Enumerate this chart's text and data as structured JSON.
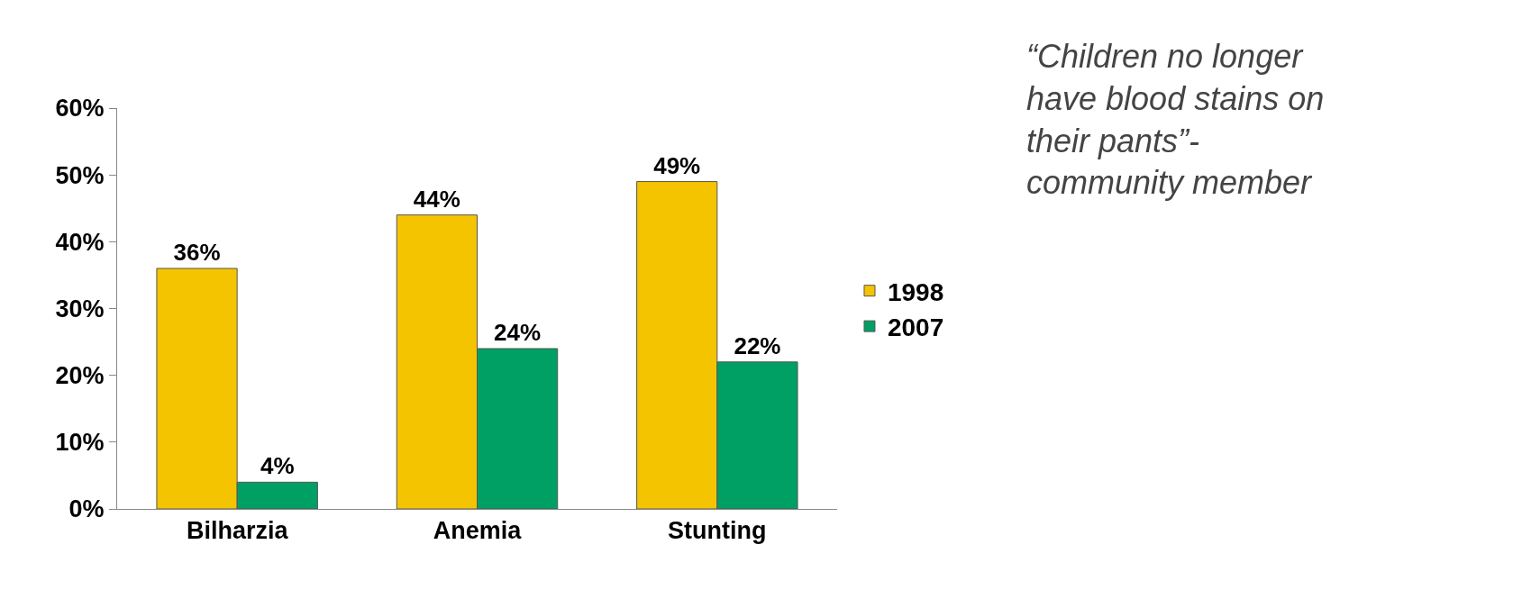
{
  "chart_data": {
    "type": "bar",
    "categories": [
      "Bilharzia",
      "Anemia",
      "Stunting"
    ],
    "series": [
      {
        "name": "1998",
        "color": "#f5c400",
        "values": [
          36,
          44,
          49
        ],
        "value_labels": [
          "36%",
          "44%",
          "49%"
        ]
      },
      {
        "name": "2007",
        "color": "#00a064",
        "values": [
          4,
          24,
          22
        ],
        "value_labels": [
          "4%",
          "24%",
          "22%"
        ]
      }
    ],
    "ylim": [
      0,
      60
    ],
    "yticks": [
      {
        "value": 0,
        "label": "0%"
      },
      {
        "value": 10,
        "label": "10%"
      },
      {
        "value": 20,
        "label": "20%"
      },
      {
        "value": 30,
        "label": "30%"
      },
      {
        "value": 40,
        "label": "40%"
      },
      {
        "value": 50,
        "label": "50%"
      },
      {
        "value": 60,
        "label": "60%"
      }
    ],
    "legend": "right",
    "annotations": [
      "“Children no longer have blood stains on their pants”- community member"
    ]
  }
}
